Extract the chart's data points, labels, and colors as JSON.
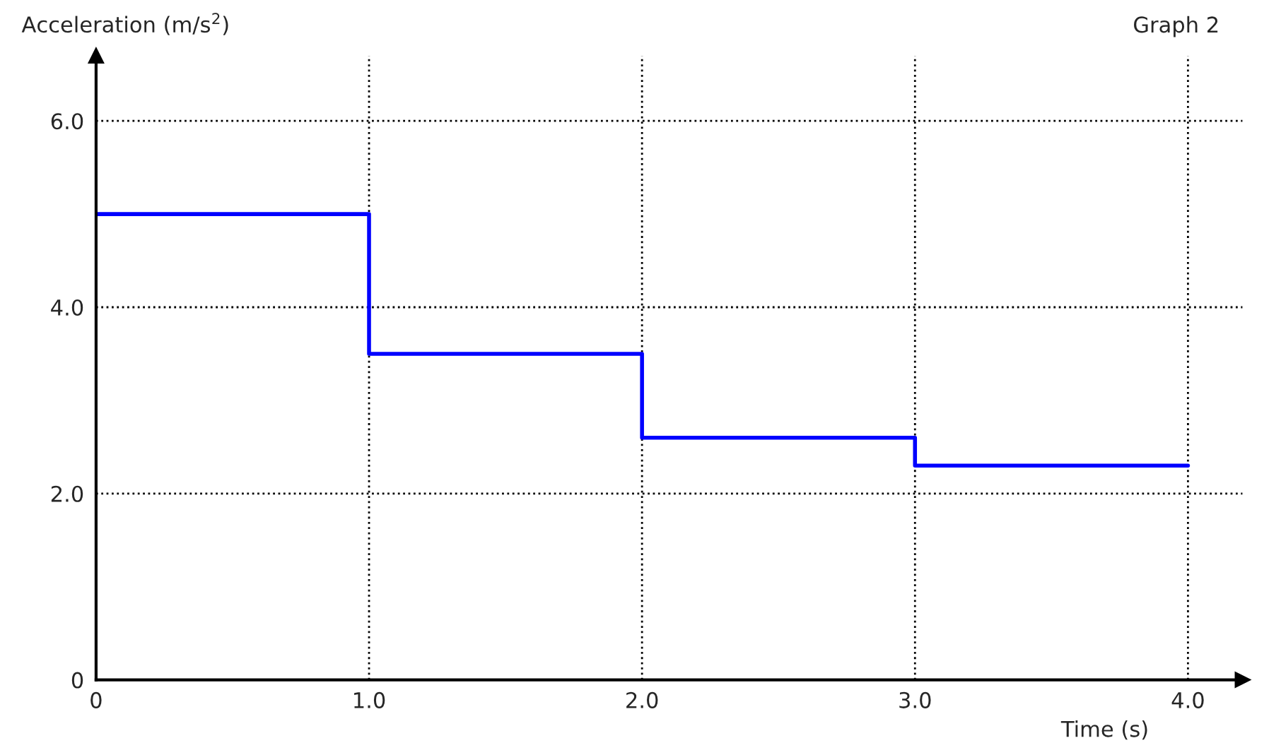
{
  "chart_data": {
    "type": "step",
    "title": "Graph 2",
    "xlabel": "Time (s)",
    "ylabel": "Acceleration (m/s$^{2}$)",
    "x": [
      0,
      1,
      2,
      3,
      4
    ],
    "series": [
      {
        "color": "#0000ff",
        "values": [
          5.0,
          3.5,
          2.6,
          2.3,
          2.3
        ]
      }
    ],
    "xlim": [
      0,
      4.2
    ],
    "ylim": [
      0,
      6.7
    ],
    "xticks": [
      0,
      {
        "value": 1,
        "label": "1.0"
      },
      {
        "value": 2,
        "label": "2.0"
      },
      {
        "value": 3,
        "label": "3.0"
      },
      {
        "value": 4,
        "label": "4.0"
      }
    ],
    "yticks": [
      0,
      {
        "value": 2,
        "label": "2.0"
      },
      {
        "value": 4,
        "label": "4.0"
      },
      {
        "value": 6,
        "label": "6.0"
      }
    ],
    "grid": true,
    "line_style": "solid"
  }
}
